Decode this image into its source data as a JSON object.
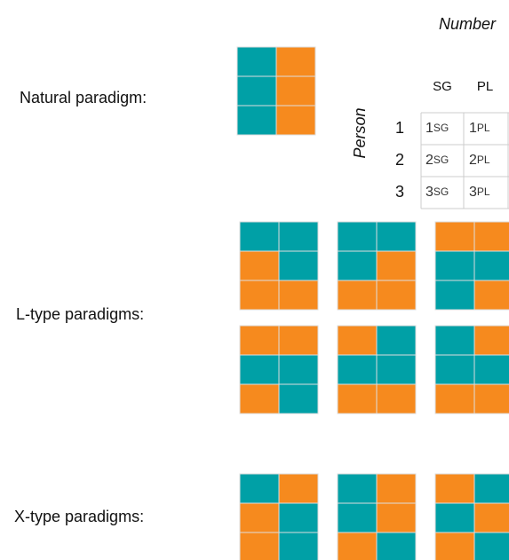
{
  "labels": {
    "natural": "Natural paradigm:",
    "l_type": "L-type paradigms:",
    "x_type": "X-type paradigms:"
  },
  "table": {
    "title": "Number",
    "columns": [
      "SG",
      "PL"
    ],
    "row_title": "Person",
    "rows": [
      "1",
      "2",
      "3"
    ],
    "cells": [
      [
        {
          "person": "1",
          "number": "SG"
        },
        {
          "person": "1",
          "number": "PL"
        }
      ],
      [
        {
          "person": "2",
          "number": "SG"
        },
        {
          "person": "2",
          "number": "PL"
        }
      ],
      [
        {
          "person": "3",
          "number": "SG"
        },
        {
          "person": "3",
          "number": "PL"
        }
      ]
    ]
  }
}
